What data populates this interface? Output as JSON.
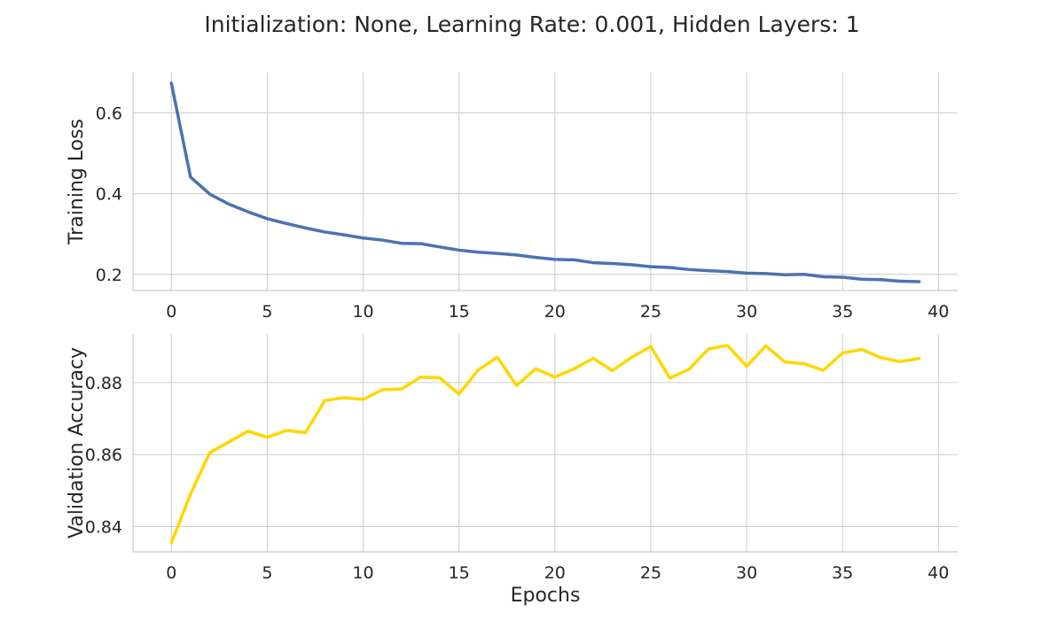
{
  "figure": {
    "title": "Initialization: None, Learning Rate: 0.001, Hidden Layers: 1"
  },
  "chart_data": [
    {
      "type": "line",
      "title": "",
      "xlabel": "",
      "ylabel": "Training Loss",
      "xlim": [
        -2,
        41
      ],
      "ylim": [
        0.16,
        0.7
      ],
      "xticks": [
        0,
        5,
        10,
        15,
        20,
        25,
        30,
        35,
        40
      ],
      "xtick_labels": [
        "0",
        "5",
        "10",
        "15",
        "20",
        "25",
        "30",
        "35",
        "40"
      ],
      "yticks": [
        0.2,
        0.4,
        0.6
      ],
      "ytick_labels": [
        "0.2",
        "0.4",
        "0.6"
      ],
      "grid": true,
      "series": [
        {
          "name": "",
          "color": "#4c72b0",
          "x": [
            0,
            1,
            2,
            3,
            4,
            5,
            6,
            7,
            8,
            9,
            10,
            11,
            12,
            13,
            14,
            15,
            16,
            17,
            18,
            19,
            20,
            21,
            22,
            23,
            24,
            25,
            26,
            27,
            28,
            29,
            30,
            31,
            32,
            33,
            34,
            35,
            36,
            37,
            38,
            39
          ],
          "y": [
            0.674,
            0.441,
            0.399,
            0.374,
            0.355,
            0.338,
            0.326,
            0.315,
            0.305,
            0.298,
            0.29,
            0.285,
            0.277,
            0.276,
            0.268,
            0.26,
            0.255,
            0.252,
            0.248,
            0.242,
            0.237,
            0.236,
            0.229,
            0.227,
            0.224,
            0.219,
            0.217,
            0.212,
            0.209,
            0.207,
            0.203,
            0.202,
            0.199,
            0.2,
            0.194,
            0.193,
            0.188,
            0.187,
            0.183,
            0.182
          ]
        }
      ]
    },
    {
      "type": "line",
      "title": "",
      "xlabel": "Epochs",
      "ylabel": "Validation Accuracy",
      "xlim": [
        -2,
        41
      ],
      "ylim": [
        0.833,
        0.8935
      ],
      "xticks": [
        0,
        5,
        10,
        15,
        20,
        25,
        30,
        35,
        40
      ],
      "xtick_labels": [
        "0",
        "5",
        "10",
        "15",
        "20",
        "25",
        "30",
        "35",
        "40"
      ],
      "yticks": [
        0.84,
        0.86,
        0.88
      ],
      "ytick_labels": [
        "0.84",
        "0.86",
        "0.88"
      ],
      "grid": true,
      "series": [
        {
          "name": "",
          "color": "#ffd700",
          "x": [
            0,
            1,
            2,
            3,
            4,
            5,
            6,
            7,
            8,
            9,
            10,
            11,
            12,
            13,
            14,
            15,
            16,
            17,
            18,
            19,
            20,
            21,
            22,
            23,
            24,
            25,
            26,
            27,
            28,
            29,
            30,
            31,
            32,
            33,
            34,
            35,
            36,
            37,
            38,
            39
          ],
          "y": [
            0.8355,
            0.849,
            0.8605,
            0.8635,
            0.8665,
            0.8648,
            0.8667,
            0.8661,
            0.875,
            0.8758,
            0.8753,
            0.878,
            0.8782,
            0.8815,
            0.8813,
            0.8768,
            0.8835,
            0.887,
            0.8792,
            0.8838,
            0.8815,
            0.8838,
            0.8867,
            0.8833,
            0.887,
            0.89,
            0.8812,
            0.8837,
            0.8893,
            0.8903,
            0.8845,
            0.8902,
            0.8857,
            0.8852,
            0.8834,
            0.8882,
            0.8892,
            0.8869,
            0.8858,
            0.8867
          ]
        }
      ]
    }
  ]
}
